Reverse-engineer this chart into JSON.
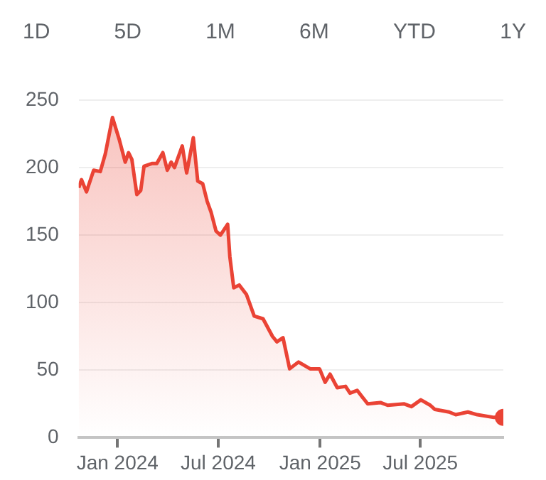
{
  "chart_data": {
    "type": "area",
    "annotations": [
      "1D",
      "5D",
      "1M",
      "6M",
      "YTD",
      "1Y"
    ],
    "x": [
      "2023-10-23",
      "2023-10-28",
      "2023-11-06",
      "2023-11-19",
      "2023-12-01",
      "2023-12-10",
      "2023-12-23",
      "2024-01-04",
      "2024-01-15",
      "2024-01-21",
      "2024-01-27",
      "2024-02-05",
      "2024-02-12",
      "2024-02-18",
      "2024-03-04",
      "2024-03-12",
      "2024-03-23",
      "2024-03-31",
      "2024-04-07",
      "2024-04-13",
      "2024-04-27",
      "2024-05-05",
      "2024-05-17",
      "2024-05-25",
      "2024-06-03",
      "2024-06-11",
      "2024-06-18",
      "2024-06-27",
      "2024-07-05",
      "2024-07-18",
      "2024-07-22",
      "2024-07-29",
      "2024-08-08",
      "2024-08-21",
      "2024-09-04",
      "2024-09-20",
      "2024-10-07",
      "2024-10-15",
      "2024-10-26",
      "2024-11-07",
      "2024-11-23",
      "2024-12-14",
      "2024-12-31",
      "2025-01-10",
      "2025-01-19",
      "2025-02-01",
      "2025-02-16",
      "2025-02-24",
      "2025-03-09",
      "2025-03-28",
      "2025-04-20",
      "2025-05-03",
      "2025-06-02",
      "2025-06-15",
      "2025-07-02",
      "2025-07-19",
      "2025-07-27",
      "2025-08-22",
      "2025-09-03",
      "2025-09-25",
      "2025-10-12",
      "2025-11-11",
      "2025-11-28"
    ],
    "series": [
      {
        "color": "#ea4335",
        "values": [
          185,
          191,
          182,
          198,
          197,
          210,
          237,
          221,
          204,
          211,
          206,
          180,
          183,
          201,
          203,
          203,
          211,
          198,
          204,
          200,
          216,
          196,
          222,
          190,
          188,
          175,
          167,
          153,
          150,
          158,
          134,
          111,
          113,
          106,
          90,
          88,
          75,
          71,
          74,
          51,
          56,
          51,
          51,
          41,
          47,
          37,
          38,
          33,
          35,
          25,
          26,
          24,
          25,
          23,
          28,
          24,
          21,
          19,
          17,
          19,
          17,
          15,
          15
        ]
      }
    ],
    "xlim": [
      "2023-10-23",
      "2025-11-28"
    ],
    "xticks": [
      {
        "value": "2024-01-01",
        "label": "Jan 2024"
      },
      {
        "value": "2024-07-01",
        "label": "Jul 2024"
      },
      {
        "value": "2025-01-01",
        "label": "Jan 2025"
      },
      {
        "value": "2025-07-01",
        "label": "Jul 2025"
      }
    ],
    "ylim": [
      0,
      250
    ],
    "yticks": [
      0,
      50,
      100,
      150,
      200,
      250
    ],
    "grid": "y",
    "legend": false
  }
}
